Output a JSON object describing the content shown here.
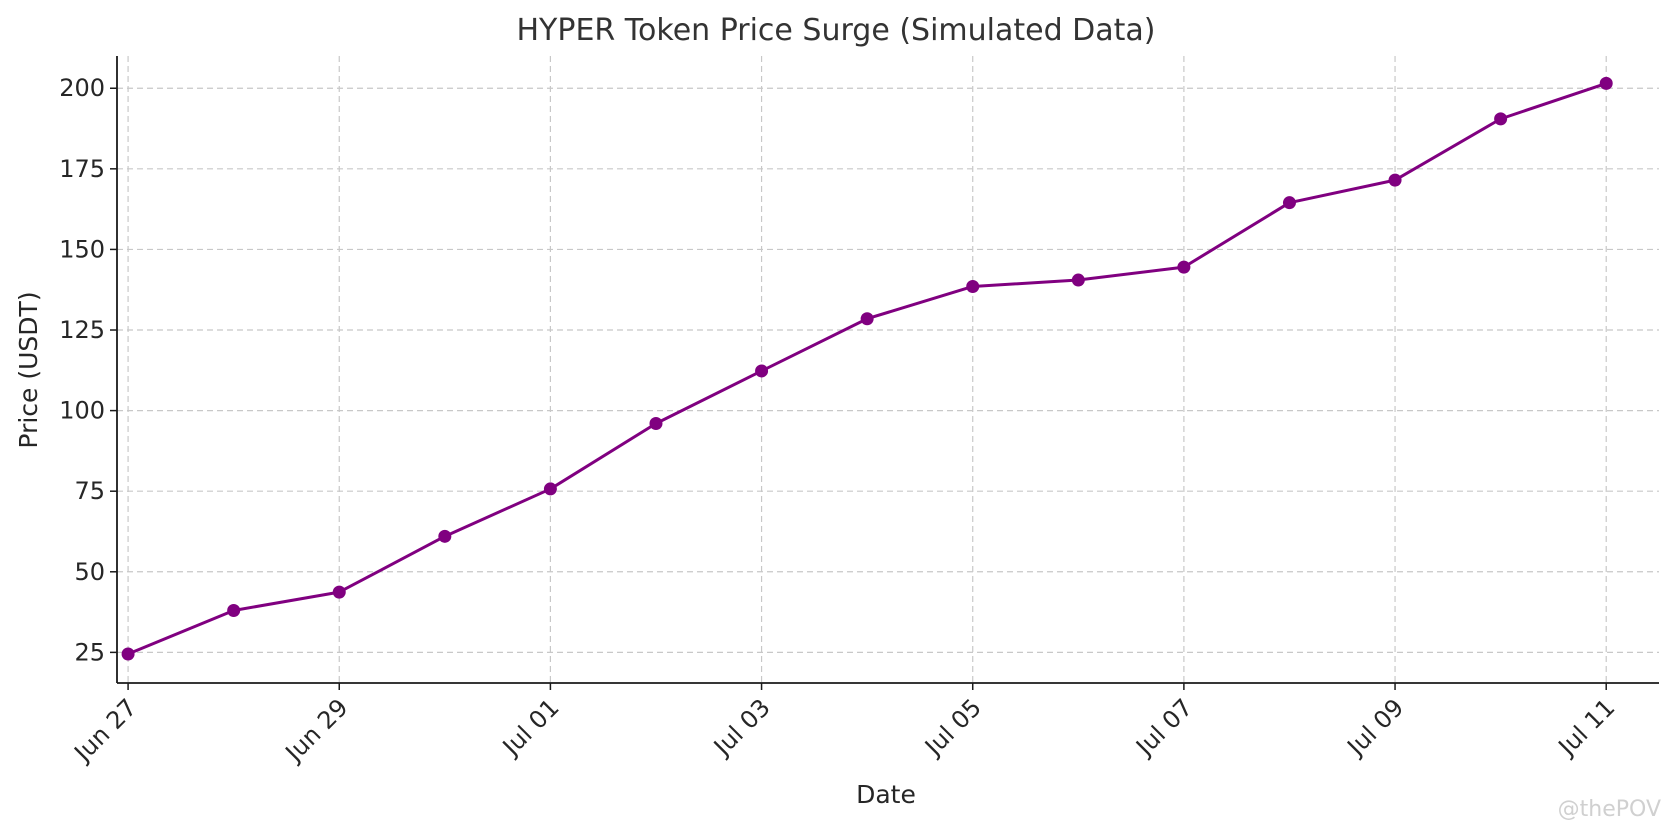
{
  "chart_data": {
    "type": "line",
    "title": "HYPER Token Price Surge (Simulated Data)",
    "xlabel": "Date",
    "ylabel": "Price (USDT)",
    "x": [
      "2025-06-27",
      "2025-06-28",
      "2025-06-29",
      "2025-06-30",
      "2025-07-01",
      "2025-07-02",
      "2025-07-03",
      "2025-07-04",
      "2025-07-05",
      "2025-07-06",
      "2025-07-07",
      "2025-07-08",
      "2025-07-09",
      "2025-07-10",
      "2025-07-11"
    ],
    "x_ticks": [
      {
        "date": "2025-06-27",
        "label": "Jun 27"
      },
      {
        "date": "2025-06-29",
        "label": "Jun 29"
      },
      {
        "date": "2025-07-01",
        "label": "Jul 01"
      },
      {
        "date": "2025-07-03",
        "label": "Jul 03"
      },
      {
        "date": "2025-07-05",
        "label": "Jul 05"
      },
      {
        "date": "2025-07-07",
        "label": "Jul 07"
      },
      {
        "date": "2025-07-09",
        "label": "Jul 09"
      },
      {
        "date": "2025-07-11",
        "label": "Jul 11"
      }
    ],
    "y_ticks": [
      25,
      50,
      75,
      100,
      125,
      150,
      175,
      200
    ],
    "ylim": [
      15.5,
      210
    ],
    "series": [
      {
        "values": [
          24.5,
          38,
          43.7,
          61,
          75.7,
          96,
          112.3,
          128.5,
          138.5,
          140.5,
          144.5,
          164.5,
          171.5,
          190.5,
          201.5
        ]
      }
    ],
    "color": "#800080",
    "grid": true,
    "legend": "none"
  },
  "watermark": "@thePOV"
}
